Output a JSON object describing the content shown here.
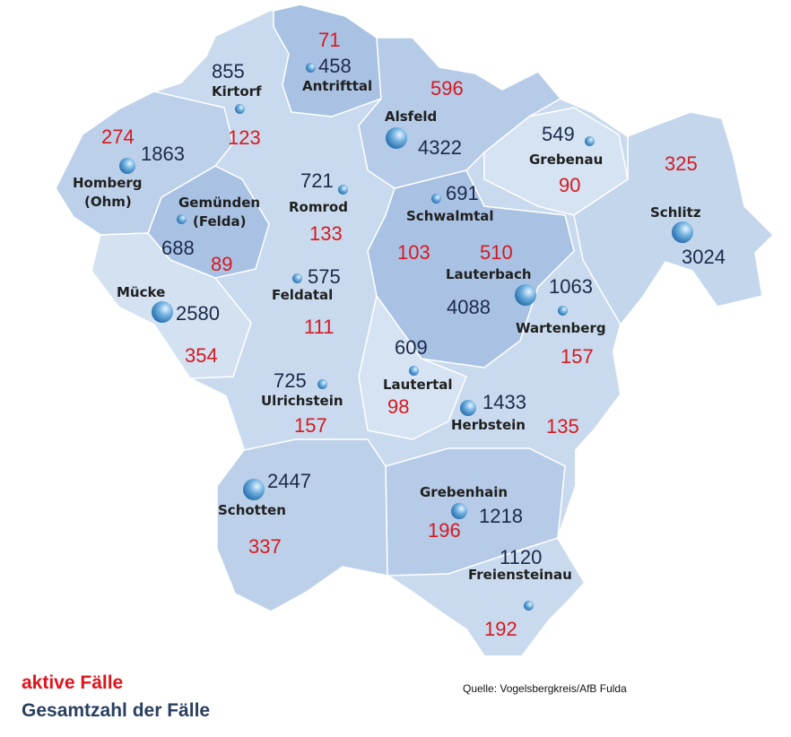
{
  "legend": {
    "active_label": "aktive Fälle",
    "total_label": "Gesamtzahl der Fälle"
  },
  "source": "Quelle: Vogelsbergkreis/AfB Fulda",
  "colors": {
    "active": "#d7191f",
    "total": "#1c2a4a",
    "map_light": "#d3e1f1",
    "map_mid": "#bcd0e9",
    "map_dark": "#a9c2e3"
  },
  "municipalities": [
    {
      "name": "Antrifttal",
      "total": "458",
      "active": "71"
    },
    {
      "name": "Kirtorf",
      "total": "855",
      "active": "123"
    },
    {
      "name": "Alsfeld",
      "total": "4322",
      "active": "596"
    },
    {
      "name": "Homberg",
      "name2": "(Ohm)",
      "total": "1863",
      "active": "274"
    },
    {
      "name": "Gemünden",
      "name2": "(Felda)",
      "total": "688",
      "active": "89"
    },
    {
      "name": "Romrod",
      "total": "721",
      "active": "133"
    },
    {
      "name": "Schwalmtal",
      "total": "691",
      "active": "103"
    },
    {
      "name": "Grebenau",
      "total": "549",
      "active": "90"
    },
    {
      "name": "Schlitz",
      "total": "3024",
      "active": "325"
    },
    {
      "name": "Lauterbach",
      "total": "4088",
      "active": "510"
    },
    {
      "name": "Wartenberg",
      "total": "1063",
      "active": "157"
    },
    {
      "name": "Feldatal",
      "total": "575",
      "active": "111"
    },
    {
      "name": "Mücke",
      "total": "2580",
      "active": "354"
    },
    {
      "name": "Lautertal",
      "total": "609",
      "active": "98"
    },
    {
      "name": "Ulrichstein",
      "total": "725",
      "active": "157"
    },
    {
      "name": "Herbstein",
      "total": "1433",
      "active": "135"
    },
    {
      "name": "Schotten",
      "total": "2447",
      "active": "337"
    },
    {
      "name": "Grebenhain",
      "total": "1218",
      "active": "196"
    },
    {
      "name": "Freiensteinau",
      "total": "1120",
      "active": "192"
    }
  ]
}
